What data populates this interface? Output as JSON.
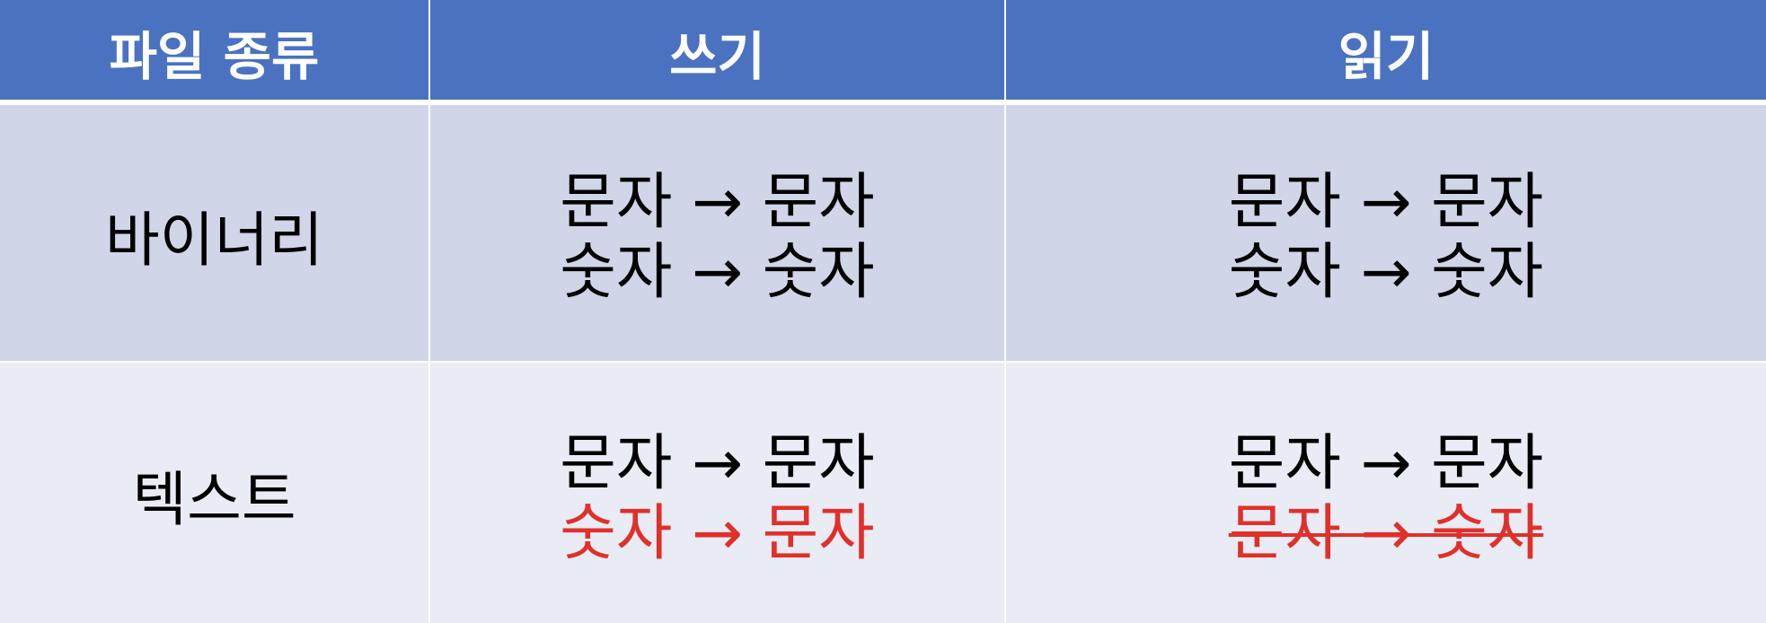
{
  "header": {
    "col1": "파일 종류",
    "col2": "쓰기",
    "col3": "읽기"
  },
  "rows": [
    {
      "label": "바이너리",
      "write": [
        "문자 → 문자",
        "숫자 → 숫자"
      ],
      "read": [
        "문자 → 문자",
        "숫자 → 숫자"
      ]
    },
    {
      "label": "텍스트",
      "write": [
        "문자 → 문자",
        "숫자 → 문자"
      ],
      "read": [
        "문자 → 문자",
        "문자 → 숫자"
      ]
    }
  ],
  "colors": {
    "header_bg": "#4a72c0",
    "row1_bg": "#d0d6e8",
    "row2_bg": "#e9ebf5",
    "highlight_red": "#e0302a"
  }
}
